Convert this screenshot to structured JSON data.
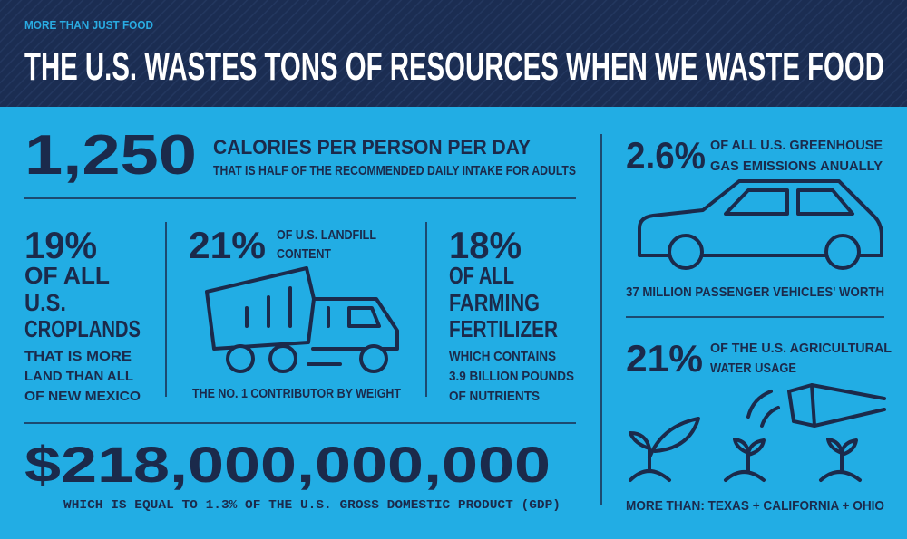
{
  "header": {
    "kicker": "MORE THAN JUST FOOD",
    "title": "THE U.S. WASTES TONS OF RESOURCES WHEN WE WASTE FOOD"
  },
  "calories": {
    "number": "1,250",
    "label": "CALORIES PER PERSON PER DAY",
    "note": "THAT IS HALF OF THE RECOMMENDED DAILY INTAKE FOR ADULTS"
  },
  "croplands": {
    "number": "19%",
    "label": [
      "OF ALL",
      "U.S.",
      "CROPLANDS"
    ],
    "note": [
      "THAT IS MORE",
      "LAND THAN ALL",
      "OF NEW MEXICO"
    ]
  },
  "landfill": {
    "number": "21%",
    "label": [
      "OF U.S. LANDFILL",
      "CONTENT"
    ],
    "note": "THE NO. 1 CONTRIBUTOR BY WEIGHT"
  },
  "fertilizer": {
    "number": "18%",
    "label": [
      "OF ALL",
      "FARMING",
      "FERTILIZER"
    ],
    "note": [
      "WHICH CONTAINS",
      "3.9 BILLION POUNDS",
      "OF NUTRIENTS"
    ]
  },
  "money": {
    "number": "$218,000,000,000",
    "note": "WHICH IS EQUAL TO 1.3% OF THE U.S. GROSS DOMESTIC PRODUCT (GDP)"
  },
  "emissions": {
    "number": "2.6%",
    "label": [
      "OF ALL U.S. GREENHOUSE",
      "GAS EMISSIONS ANUALLY"
    ],
    "note": "37 MILLION PASSENGER VEHICLES' WORTH"
  },
  "water": {
    "number": "21%",
    "label": [
      "OF THE U.S. AGRICULTURAL",
      "WATER USAGE"
    ],
    "note": "MORE THAN: TEXAS + CALIFORNIA + OHIO"
  }
}
